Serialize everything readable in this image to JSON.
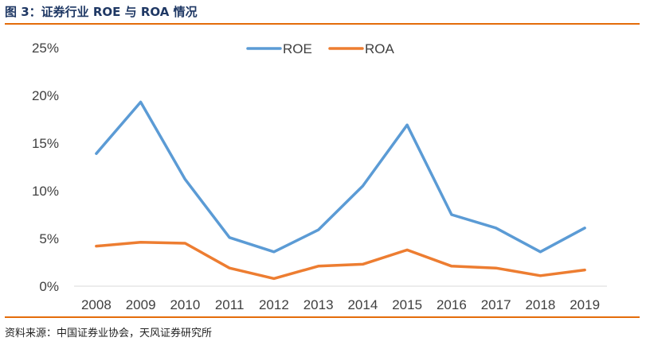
{
  "figure": {
    "title": "图 3：证券行业 ROE 与 ROA 情况",
    "source": "资料来源：中国证券业协会，天风证券研究所"
  },
  "colors": {
    "roe": "#5b9bd5",
    "roa": "#ed7d31",
    "axis": "#d9d9d9",
    "text": "#404040",
    "accent": "#e46c0a"
  },
  "chart_data": {
    "type": "line",
    "title": "证券行业 ROE 与 ROA 情况",
    "xlabel": "",
    "ylabel": "",
    "categories": [
      "2008",
      "2009",
      "2010",
      "2011",
      "2012",
      "2013",
      "2014",
      "2015",
      "2016",
      "2017",
      "2018",
      "2019"
    ],
    "series": [
      {
        "name": "ROE",
        "values": [
          13.9,
          19.3,
          11.2,
          5.1,
          3.6,
          5.9,
          10.5,
          16.9,
          7.5,
          6.1,
          3.6,
          6.1
        ]
      },
      {
        "name": "ROA",
        "values": [
          4.2,
          4.6,
          4.5,
          1.9,
          0.8,
          2.1,
          2.3,
          3.8,
          2.1,
          1.9,
          1.1,
          1.7
        ]
      }
    ],
    "ylim": [
      0,
      25
    ],
    "yticks": [
      "0%",
      "5%",
      "10%",
      "15%",
      "20%",
      "25%"
    ],
    "grid": false,
    "legend": "top-center"
  }
}
